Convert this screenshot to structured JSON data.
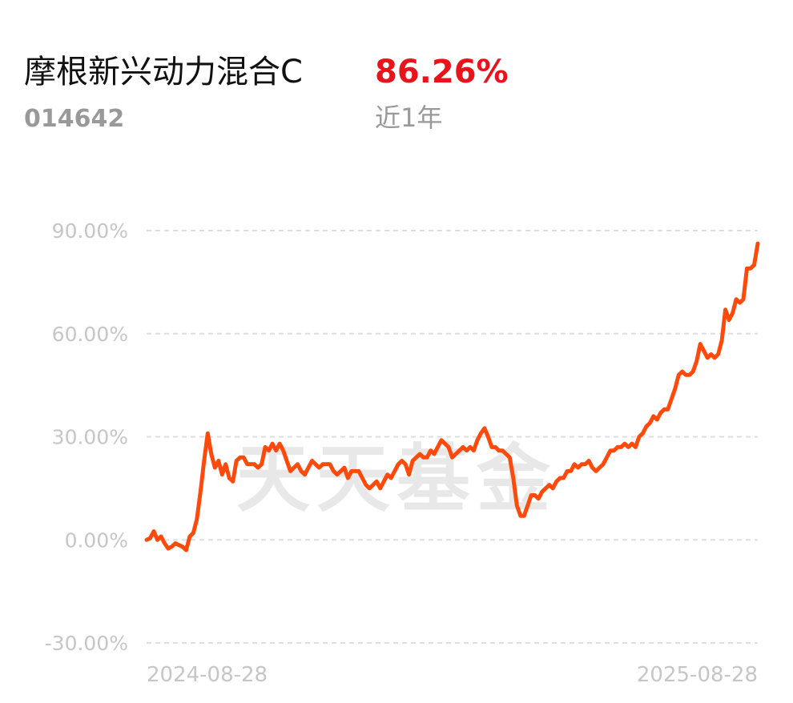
{
  "chart_data": {
    "type": "line",
    "title": "摩根新兴动力混合C",
    "change": "86.26%",
    "code": "014642",
    "period": "近1年",
    "watermark": "天天基金",
    "color": "#ff4a0c",
    "grid": true,
    "categories": [
      "2024-08-28",
      null,
      null,
      null,
      null,
      null,
      null,
      null,
      null,
      null,
      null,
      null,
      null,
      null,
      null,
      null,
      null,
      null,
      null,
      null,
      null,
      null,
      null,
      null,
      null,
      null,
      null,
      null,
      null,
      null,
      null,
      null,
      null,
      null,
      null,
      null,
      null,
      null,
      null,
      null,
      null,
      null,
      null,
      null,
      null,
      null,
      null,
      null,
      null,
      null,
      null,
      null,
      null,
      null,
      null,
      null,
      null,
      null,
      null,
      null,
      null,
      null,
      null,
      null,
      null,
      null,
      null,
      null,
      null,
      null,
      null,
      null,
      null,
      null,
      null,
      null,
      null,
      null,
      null,
      null,
      null,
      null,
      null,
      null,
      null,
      null,
      null,
      null,
      null,
      null,
      null,
      null,
      null,
      null,
      null,
      null,
      null,
      null,
      null,
      null,
      null,
      null,
      null,
      null,
      null,
      null,
      null,
      null,
      null,
      null,
      null,
      null,
      null,
      null,
      null,
      null,
      null,
      null,
      null,
      null,
      null,
      null,
      null,
      null,
      null,
      null,
      null,
      null,
      null,
      null,
      null,
      null,
      null,
      null,
      null,
      null,
      null,
      null,
      null,
      null,
      null,
      null,
      null,
      null,
      null,
      null,
      null,
      null,
      null,
      null,
      null,
      null,
      null,
      null,
      null,
      null,
      null,
      null,
      null,
      null,
      null,
      null,
      null,
      null,
      null,
      null,
      null,
      null,
      null,
      null,
      "2025-08-28"
    ],
    "values": [
      0,
      0.5,
      2.5,
      0,
      1,
      -1,
      -2.5,
      -2,
      -1,
      -1.5,
      -2,
      -3,
      1,
      2,
      6,
      14,
      23,
      31,
      25,
      21,
      23,
      19,
      22,
      18,
      17,
      23,
      24,
      24,
      22,
      22,
      22,
      21,
      22,
      27,
      26,
      28,
      26,
      28,
      26,
      23,
      20,
      21,
      22,
      20,
      19,
      21,
      23,
      22,
      21,
      22,
      22,
      22,
      20,
      19,
      20,
      21,
      18,
      20,
      20,
      20,
      18,
      16,
      15,
      16,
      17,
      15,
      17,
      19,
      18,
      20,
      22,
      23,
      22,
      19,
      23,
      24,
      25,
      24,
      24,
      26,
      25,
      27,
      29,
      28,
      27,
      24,
      25,
      26,
      27,
      26,
      27,
      26,
      29,
      31,
      32.5,
      30,
      27,
      27,
      26,
      26,
      25,
      24,
      18,
      10,
      7,
      7,
      10,
      13,
      13,
      12,
      14,
      15,
      16,
      15,
      17,
      18,
      18,
      20,
      20,
      22,
      21,
      22,
      22,
      23,
      21,
      20,
      21,
      22,
      24,
      26,
      26,
      27,
      27,
      28,
      27,
      28,
      27,
      30,
      31,
      33,
      34,
      36,
      35,
      37,
      38,
      38,
      41,
      44,
      48,
      49,
      48,
      48,
      49,
      52,
      57,
      55,
      53,
      54,
      53,
      54,
      58,
      67,
      64,
      66,
      70,
      69,
      70,
      79,
      79,
      80,
      86.26
    ],
    "ylim": [
      -30,
      90
    ],
    "yticks": [
      {
        "value": 90,
        "label": "90.00%"
      },
      {
        "value": 60,
        "label": "60.00%"
      },
      {
        "value": 30,
        "label": "30.00%"
      },
      {
        "value": 0,
        "label": "0.00%"
      },
      {
        "value": -30,
        "label": "-30.00%"
      }
    ]
  }
}
